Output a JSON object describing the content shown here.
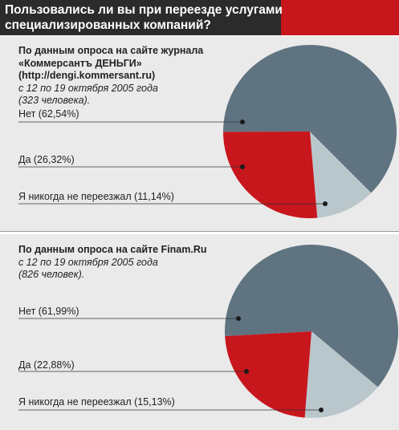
{
  "header": {
    "title": "Пользовались ли вы при переезде услугами специализированных компаний?"
  },
  "colors": {
    "no": "#5f7380",
    "yes": "#c8161d",
    "never": "#b9c7cc",
    "header_bg": "#2b2b2b",
    "accent": "#c8161d",
    "panel_bg": "#eaeaea"
  },
  "surveys": [
    {
      "source_bold": [
        "По данным опроса на сайте журнала",
        "«Коммерсантъ ДЕНЬГИ»",
        "(http://dengi.kommersant.ru)"
      ],
      "details": [
        "с 12 по 19 октября 2005 года",
        "(323 человека)."
      ]
    },
    {
      "source_bold": [
        "По данным опроса на сайте Finam.Ru"
      ],
      "details": [
        "с 12 по 19 октября 2005 года",
        "(826 человек)."
      ]
    }
  ],
  "chart_data": [
    {
      "type": "pie",
      "categories": [
        "Нет",
        "Да",
        "Я никогда не переезжал"
      ],
      "values": [
        62.54,
        26.32,
        11.14
      ],
      "labels": [
        "Нет (62,54%)",
        "Да (26,32%)",
        "Я никогда не переезжал (11,14%)"
      ]
    },
    {
      "type": "pie",
      "categories": [
        "Нет",
        "Да",
        "Я никогда не переезжал"
      ],
      "values": [
        61.99,
        22.88,
        15.13
      ],
      "labels": [
        "Нет (61,99%)",
        "Да (22,88%)",
        "Я никогда не переезжал (15,13%)"
      ]
    }
  ]
}
